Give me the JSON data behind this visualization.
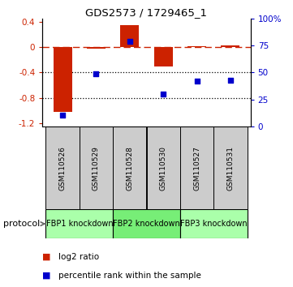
{
  "title": "GDS2573 / 1729465_1",
  "samples": [
    "GSM110526",
    "GSM110529",
    "GSM110528",
    "GSM110530",
    "GSM110527",
    "GSM110531"
  ],
  "log2_ratio": [
    -1.02,
    -0.02,
    0.35,
    -0.3,
    0.02,
    0.03
  ],
  "percentile_rank": [
    10,
    49,
    79,
    30,
    42,
    43
  ],
  "bar_color": "#CC2200",
  "dot_color": "#0000CC",
  "ylim_left": [
    -1.25,
    0.45
  ],
  "ylim_right": [
    0,
    100
  ],
  "yticks_left": [
    0.4,
    0.0,
    -0.4,
    -0.8,
    -1.2
  ],
  "yticks_right": [
    100,
    75,
    50,
    25,
    0
  ],
  "ytick_labels_left": [
    "0.4",
    "0",
    "-0.4",
    "-0.8",
    "-1.2"
  ],
  "ytick_labels_right": [
    "100%",
    "75",
    "50",
    "25",
    "0"
  ],
  "hlines_dotted": [
    -0.4,
    -0.8
  ],
  "hline_dashed": 0.0,
  "protocols": [
    {
      "label": "FBP1 knockdown",
      "samples": [
        0,
        1
      ],
      "color": "#AAFFAA"
    },
    {
      "label": "FBP2 knockdown",
      "samples": [
        2,
        3
      ],
      "color": "#77EE77"
    },
    {
      "label": "FBP3 knockdown",
      "samples": [
        4,
        5
      ],
      "color": "#AAFFAA"
    }
  ],
  "legend_items": [
    {
      "label": "log2 ratio",
      "color": "#CC2200"
    },
    {
      "label": "percentile rank within the sample",
      "color": "#0000CC"
    }
  ],
  "protocol_label": "protocol",
  "sample_box_color": "#CCCCCC",
  "background_color": "#FFFFFF"
}
